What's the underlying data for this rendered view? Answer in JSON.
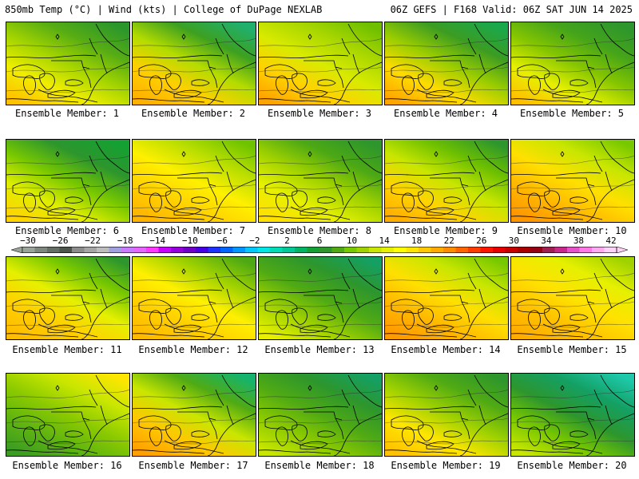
{
  "header": {
    "left": "850mb Temp (°C) | Wind (kts) | College of DuPage NEXLAB",
    "right": "06Z GEFS | F168 Valid: 06Z SAT JUN 14 2025"
  },
  "colorbar": {
    "labels": [
      "−30",
      "−26",
      "−22",
      "−18",
      "−14",
      "−10",
      "−6",
      "−2",
      "2",
      "6",
      "10",
      "14",
      "18",
      "22",
      "26",
      "30",
      "34",
      "38",
      "42"
    ],
    "colors": [
      "#9aa59a",
      "#7d877d",
      "#646e64",
      "#4b554b",
      "#8c8c8c",
      "#a5a5a5",
      "#bdbdbd",
      "#a0a0e0",
      "#c87bff",
      "#e664ff",
      "#ff37ff",
      "#c800ff",
      "#9600dc",
      "#6e00c8",
      "#4600e6",
      "#1e32ff",
      "#0064ff",
      "#0096ff",
      "#00c8ff",
      "#00e6e6",
      "#00dcb4",
      "#00c896",
      "#00b464",
      "#14a032",
      "#2d962d",
      "#50aa14",
      "#78c800",
      "#a0d200",
      "#c8e600",
      "#e6f000",
      "#ffff00",
      "#ffe600",
      "#ffc800",
      "#ffaa00",
      "#ff8c00",
      "#ff6400",
      "#ff3c00",
      "#ff1400",
      "#e60000",
      "#c80000",
      "#aa0000",
      "#960014",
      "#a01e50",
      "#c8288c",
      "#e650c8",
      "#ff78e6",
      "#ffaaf0",
      "#ffd2fa"
    ]
  },
  "members": [
    {
      "label": "Ensemble Member: 1",
      "colors": [
        "#2a962c",
        "#56ac14",
        "#a3d400",
        "#f0ee00",
        "#ffc200"
      ]
    },
    {
      "label": "Ensemble Member: 2",
      "colors": [
        "#1fb06e",
        "#3da020",
        "#b3dc00",
        "#ffd000",
        "#ffb000"
      ]
    },
    {
      "label": "Ensemble Member: 3",
      "colors": [
        "#6ebf00",
        "#a8d600",
        "#d8ea00",
        "#ffd200",
        "#ffa400"
      ]
    },
    {
      "label": "Ensemble Member: 4",
      "colors": [
        "#1aa84c",
        "#3c9c22",
        "#9acd00",
        "#ffdc00",
        "#ffa600"
      ]
    },
    {
      "label": "Ensemble Member: 5",
      "colors": [
        "#2d962d",
        "#45a41a",
        "#86c600",
        "#e6f000",
        "#ffc000"
      ]
    },
    {
      "label": "Ensemble Member: 6",
      "colors": [
        "#14a032",
        "#2d962d",
        "#78c800",
        "#e0ee00",
        "#ffd400"
      ]
    },
    {
      "label": "Ensemble Member: 7",
      "colors": [
        "#6ec300",
        "#b9de00",
        "#fff000",
        "#ffd000",
        "#ffb400"
      ]
    },
    {
      "label": "Ensemble Member: 8",
      "colors": [
        "#2d962d",
        "#4ca814",
        "#a0d200",
        "#e6f000",
        "#ffe000"
      ]
    },
    {
      "label": "Ensemble Member: 9",
      "colors": [
        "#2d962d",
        "#6ec000",
        "#c8e600",
        "#ffd400",
        "#ffae00"
      ]
    },
    {
      "label": "Ensemble Member: 10",
      "colors": [
        "#78c800",
        "#c8e600",
        "#ffe000",
        "#ffb800",
        "#ff9600"
      ]
    },
    {
      "label": "Ensemble Member: 11",
      "colors": [
        "#2d962d",
        "#78c800",
        "#e6f000",
        "#ffd000",
        "#ffbc00"
      ]
    },
    {
      "label": "Ensemble Member: 12",
      "colors": [
        "#4ca814",
        "#a0d200",
        "#fff000",
        "#ffd000",
        "#ffba00"
      ]
    },
    {
      "label": "Ensemble Member: 13",
      "colors": [
        "#14a064",
        "#2d962d",
        "#50aa14",
        "#a0d200",
        "#e6f000"
      ]
    },
    {
      "label": "Ensemble Member: 14",
      "colors": [
        "#78c800",
        "#c8e600",
        "#ffe000",
        "#ffb800",
        "#ff9a00"
      ]
    },
    {
      "label": "Ensemble Member: 15",
      "colors": [
        "#a0d200",
        "#e6f000",
        "#ffe200",
        "#ffc200",
        "#ffac00"
      ]
    },
    {
      "label": "Ensemble Member: 16",
      "colors": [
        "#ffe600",
        "#c8e600",
        "#8cca00",
        "#60b410",
        "#3c9c22"
      ]
    },
    {
      "label": "Ensemble Member: 17",
      "colors": [
        "#14b46e",
        "#50aa14",
        "#c8e600",
        "#ffc800",
        "#ffa000"
      ]
    },
    {
      "label": "Ensemble Member: 18",
      "colors": [
        "#14a064",
        "#2d962d",
        "#50aa14",
        "#8cca00",
        "#c8e600"
      ]
    },
    {
      "label": "Ensemble Member: 19",
      "colors": [
        "#2d962d",
        "#50aa14",
        "#a0d200",
        "#ffe600",
        "#ffc200"
      ]
    },
    {
      "label": "Ensemble Member: 20",
      "colors": [
        "#1ec8aa",
        "#14a064",
        "#2d962d",
        "#78c800",
        "#c8e600"
      ]
    }
  ]
}
